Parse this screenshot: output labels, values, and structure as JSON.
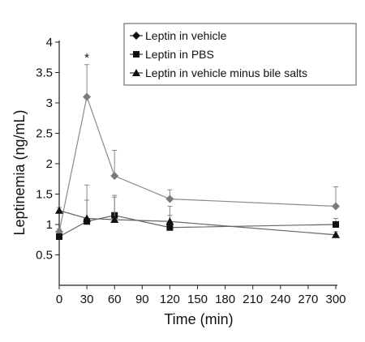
{
  "chart_data": {
    "type": "line",
    "xlabel": "Time (min)",
    "ylabel": "Leptinemia (ng/mL)",
    "xlim": [
      0,
      300
    ],
    "ylim": [
      0,
      4
    ],
    "x_ticks": [
      0,
      30,
      60,
      90,
      120,
      150,
      180,
      210,
      240,
      270,
      300
    ],
    "y_ticks": [
      0.5,
      1,
      1.5,
      2,
      2.5,
      3,
      3.5,
      4
    ],
    "x_tick_labels": [
      "0",
      "30",
      "60",
      "90",
      "120",
      "150",
      "180",
      "210",
      "240",
      "270",
      "300"
    ],
    "y_tick_labels": [
      "0.5",
      "1",
      "1.5",
      "2",
      "2.5",
      "3",
      "3.5",
      "4"
    ],
    "grid": false,
    "legend_position": "top-right",
    "series": [
      {
        "name": "Leptin in vehicle",
        "marker": "diamond",
        "color": "#7a7a7a",
        "x": [
          0,
          30,
          60,
          120,
          300
        ],
        "y": [
          0.88,
          3.1,
          1.8,
          1.42,
          1.3
        ],
        "err": [
          0.05,
          0.53,
          0.42,
          0.15,
          0.32
        ]
      },
      {
        "name": "Leptin in PBS",
        "marker": "square",
        "color": "#111111",
        "x": [
          0,
          30,
          60,
          120,
          300
        ],
        "y": [
          0.8,
          1.05,
          1.15,
          0.95,
          1.0
        ],
        "err": [
          0.05,
          0.35,
          0.3,
          0.2,
          0.1
        ]
      },
      {
        "name": "Leptin in vehicle minus bile salts",
        "marker": "triangle",
        "color": "#111111",
        "x": [
          0,
          30,
          60,
          120,
          300
        ],
        "y": [
          1.23,
          1.1,
          1.08,
          1.05,
          0.83
        ],
        "err": [
          0.05,
          0.55,
          0.4,
          0.25,
          0.05
        ]
      }
    ],
    "annotations": [
      {
        "text": "*",
        "x": 30,
        "y": 3.63
      }
    ]
  }
}
